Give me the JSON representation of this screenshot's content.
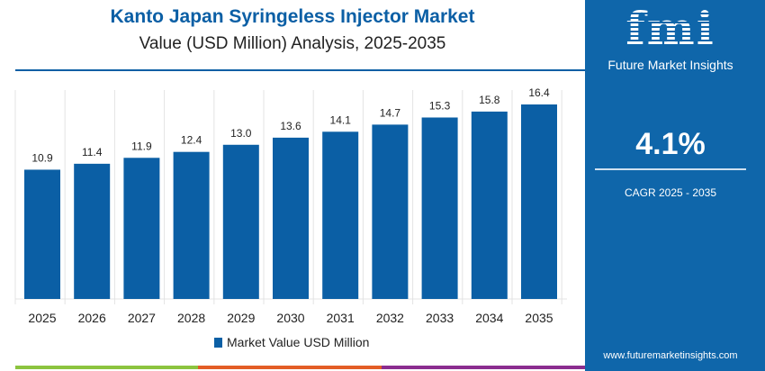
{
  "header": {
    "title": "Kanto Japan Syringeless Injector Market",
    "subtitle": "Value (USD Million) Analysis, 2025-2035"
  },
  "chart_data": {
    "type": "bar",
    "title": "Kanto Japan Syringeless Injector Market",
    "subtitle": "Value (USD Million) Analysis, 2025-2035",
    "categories": [
      "2025",
      "2026",
      "2027",
      "2028",
      "2029",
      "2030",
      "2031",
      "2032",
      "2033",
      "2034",
      "2035"
    ],
    "series": [
      {
        "name": "Market Value USD Million",
        "values": [
          10.9,
          11.4,
          11.9,
          12.4,
          13.0,
          13.6,
          14.1,
          14.7,
          15.3,
          15.8,
          16.4
        ]
      }
    ],
    "data_labels": [
      "10.9",
      "11.4",
      "11.9",
      "12.4",
      "13.0",
      "13.6",
      "14.1",
      "14.7",
      "15.3",
      "15.8",
      "16.4"
    ],
    "ylim": [
      0,
      16.4
    ],
    "grid": "vertical",
    "legend": "bottom",
    "colors": {
      "bar": "#0b5fa5"
    }
  },
  "panel": {
    "logo": "fmi",
    "logo_text": "Future Market Insights",
    "cagr_value": "4.1%",
    "cagr_label": "CAGR 2025 - 2035",
    "website": "www.futuremarketinsights.com",
    "background": "#0f66aa"
  },
  "bottom_bar_colors": [
    "#8cc43f",
    "#e35d26",
    "#8b2d8f"
  ]
}
